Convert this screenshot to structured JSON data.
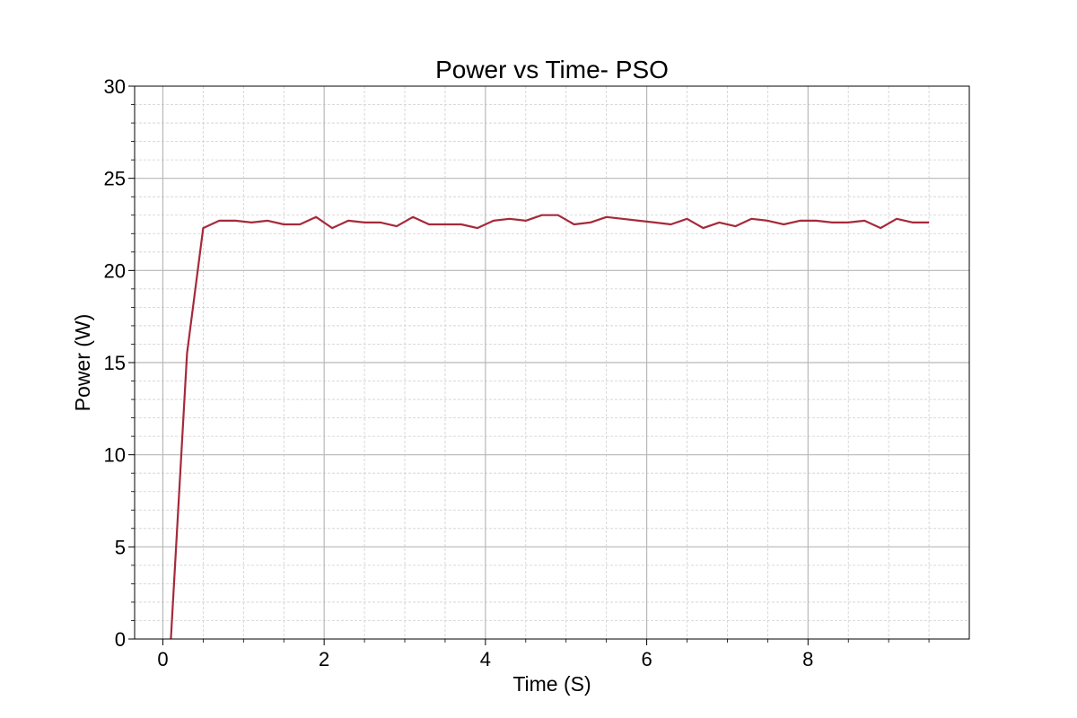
{
  "chart_data": {
    "type": "line",
    "title": "Power vs Time- PSO",
    "xlabel": "Time (S)",
    "ylabel": "Power (W)",
    "xlim": [
      -0.35,
      10.0
    ],
    "ylim": [
      0,
      30
    ],
    "xticks": [
      0,
      2,
      4,
      6,
      8
    ],
    "yticks": [
      0,
      5,
      10,
      15,
      20,
      25,
      30
    ],
    "xtick_labels": [
      "0",
      "2",
      "4",
      "6",
      "8"
    ],
    "ytick_labels": [
      "0",
      "5",
      "10",
      "15",
      "20",
      "25",
      "30"
    ],
    "grid": true,
    "minor_grid": true,
    "series": [
      {
        "color": "#a52a3a",
        "x": [
          0.1,
          0.3,
          0.5,
          0.7,
          0.9,
          1.1,
          1.3,
          1.5,
          1.7,
          1.9,
          2.1,
          2.3,
          2.5,
          2.7,
          2.9,
          3.1,
          3.3,
          3.5,
          3.7,
          3.9,
          4.1,
          4.3,
          4.5,
          4.7,
          4.9,
          5.1,
          5.3,
          5.5,
          5.7,
          5.9,
          6.1,
          6.3,
          6.5,
          6.7,
          6.9,
          7.1,
          7.3,
          7.5,
          7.7,
          7.9,
          8.1,
          8.3,
          8.5,
          8.7,
          8.9,
          9.1,
          9.3,
          9.5
        ],
        "y": [
          0.0,
          15.5,
          22.3,
          22.7,
          22.7,
          22.6,
          22.7,
          22.5,
          22.5,
          22.9,
          22.3,
          22.7,
          22.6,
          22.6,
          22.4,
          22.9,
          22.5,
          22.5,
          22.5,
          22.3,
          22.7,
          22.8,
          22.7,
          23.0,
          23.0,
          22.5,
          22.6,
          22.9,
          22.8,
          22.7,
          22.6,
          22.5,
          22.8,
          22.3,
          22.6,
          22.4,
          22.8,
          22.7,
          22.5,
          22.7,
          22.7,
          22.6,
          22.6,
          22.7,
          22.3,
          22.8,
          22.6,
          22.6
        ]
      }
    ]
  }
}
